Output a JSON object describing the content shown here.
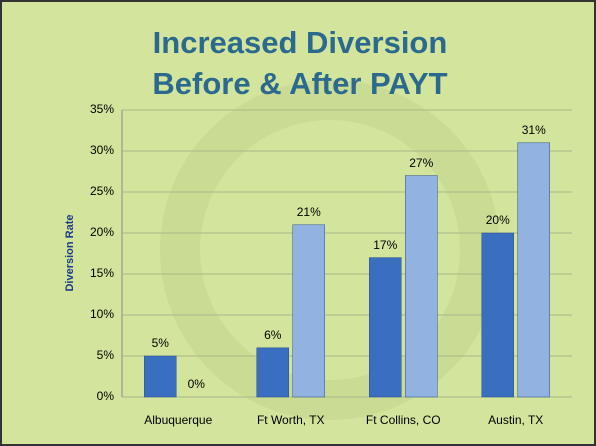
{
  "chart_data": {
    "type": "bar",
    "title": [
      "Increased Diversion",
      "Before & After PAYT"
    ],
    "y_label": "Diversion Rate",
    "categories": [
      "Albuquerque",
      "Ft Worth, TX",
      "Ft Collins, CO",
      "Austin, TX"
    ],
    "series": [
      {
        "color": "#3a6fc0",
        "values": [
          5,
          6,
          17,
          20
        ],
        "value_labels": [
          "5%",
          "6%",
          "17%",
          "20%"
        ]
      },
      {
        "color": "#92b2e2",
        "values": [
          0,
          21,
          27,
          31
        ],
        "value_labels": [
          "0%",
          "21%",
          "27%",
          "31%"
        ]
      }
    ],
    "ylim": [
      0,
      35
    ],
    "yticks": [
      {
        "value": 0,
        "label": "0%"
      },
      {
        "value": 5,
        "label": "5%"
      },
      {
        "value": 10,
        "label": "10%"
      },
      {
        "value": 15,
        "label": "15%"
      },
      {
        "value": 20,
        "label": "20%"
      },
      {
        "value": 25,
        "label": "25%"
      },
      {
        "value": 30,
        "label": "30%"
      },
      {
        "value": 35,
        "label": "35%"
      }
    ],
    "grid": true
  }
}
